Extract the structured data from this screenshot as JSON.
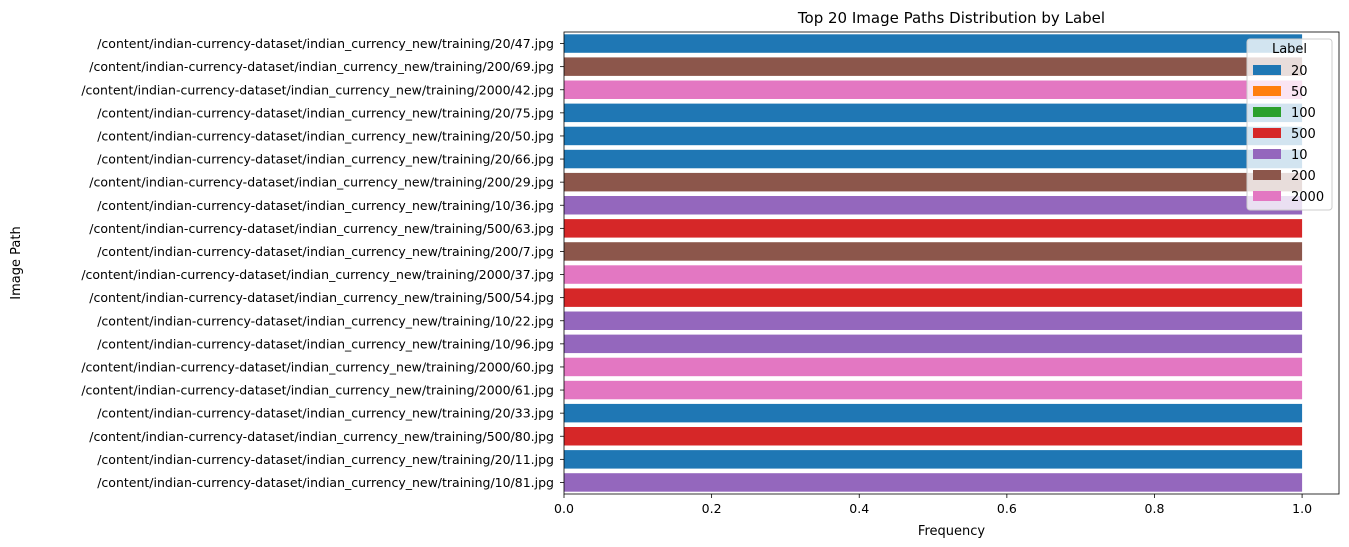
{
  "chart_data": {
    "type": "bar",
    "orientation": "horizontal",
    "title": "Top 20 Image Paths Distribution by Label",
    "xlabel": "Frequency",
    "ylabel": "Image Path",
    "xlim": [
      0,
      1.05
    ],
    "xticks": [
      "0.0",
      "0.2",
      "0.4",
      "0.6",
      "0.8",
      "1.0"
    ],
    "xtick_values": [
      0,
      0.2,
      0.4,
      0.6,
      0.8,
      1.0
    ],
    "grid": false,
    "legend": {
      "title": "Label",
      "placement": "top-right",
      "entries": [
        {
          "label": "20",
          "color": "#1f77b4"
        },
        {
          "label": "50",
          "color": "#ff7f0e"
        },
        {
          "label": "100",
          "color": "#2ca02c"
        },
        {
          "label": "500",
          "color": "#d62728"
        },
        {
          "label": "10",
          "color": "#9467bd"
        },
        {
          "label": "200",
          "color": "#8c564b"
        },
        {
          "label": "2000",
          "color": "#e377c2"
        }
      ]
    },
    "categories": [
      "/content/indian-currency-dataset/indian_currency_new/training/20/47.jpg",
      "/content/indian-currency-dataset/indian_currency_new/training/200/69.jpg",
      "/content/indian-currency-dataset/indian_currency_new/training/2000/42.jpg",
      "/content/indian-currency-dataset/indian_currency_new/training/20/75.jpg",
      "/content/indian-currency-dataset/indian_currency_new/training/20/50.jpg",
      "/content/indian-currency-dataset/indian_currency_new/training/20/66.jpg",
      "/content/indian-currency-dataset/indian_currency_new/training/200/29.jpg",
      "/content/indian-currency-dataset/indian_currency_new/training/10/36.jpg",
      "/content/indian-currency-dataset/indian_currency_new/training/500/63.jpg",
      "/content/indian-currency-dataset/indian_currency_new/training/200/7.jpg",
      "/content/indian-currency-dataset/indian_currency_new/training/2000/37.jpg",
      "/content/indian-currency-dataset/indian_currency_new/training/500/54.jpg",
      "/content/indian-currency-dataset/indian_currency_new/training/10/22.jpg",
      "/content/indian-currency-dataset/indian_currency_new/training/10/96.jpg",
      "/content/indian-currency-dataset/indian_currency_new/training/2000/60.jpg",
      "/content/indian-currency-dataset/indian_currency_new/training/2000/61.jpg",
      "/content/indian-currency-dataset/indian_currency_new/training/20/33.jpg",
      "/content/indian-currency-dataset/indian_currency_new/training/500/80.jpg",
      "/content/indian-currency-dataset/indian_currency_new/training/20/11.jpg",
      "/content/indian-currency-dataset/indian_currency_new/training/10/81.jpg"
    ],
    "values": [
      1,
      1,
      1,
      1,
      1,
      1,
      1,
      1,
      1,
      1,
      1,
      1,
      1,
      1,
      1,
      1,
      1,
      1,
      1,
      1
    ],
    "labels": [
      "20",
      "200",
      "2000",
      "20",
      "20",
      "20",
      "200",
      "10",
      "500",
      "200",
      "2000",
      "500",
      "10",
      "10",
      "2000",
      "2000",
      "20",
      "500",
      "20",
      "10"
    ]
  }
}
